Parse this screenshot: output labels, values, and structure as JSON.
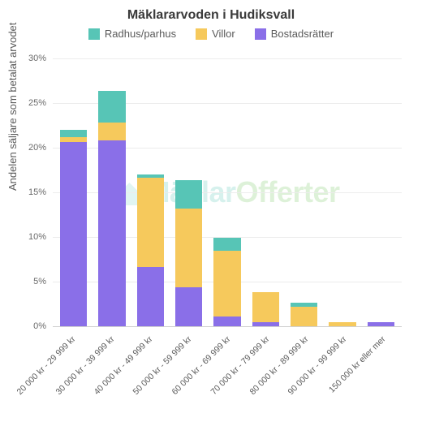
{
  "title": "Mäklararvoden i Hudiksvall",
  "title_fontsize": 16,
  "title_color": "#3a3a3a",
  "legend": {
    "items": [
      {
        "label": "Radhus/parhus",
        "color": "#57c5b6"
      },
      {
        "label": "Villor",
        "color": "#f6c95c"
      },
      {
        "label": "Bostadsrätter",
        "color": "#8a6fe8"
      }
    ],
    "fontsize": 13
  },
  "chart": {
    "type": "stacked-bar",
    "ylabel": "Andelen säljare som betalat arvodet",
    "ylabel_fontsize": 13,
    "ylim": [
      0,
      30
    ],
    "ytick_step": 5,
    "ytick_suffix": "%",
    "grid_color": "#ececec",
    "axis_color": "#d0d0d0",
    "background_color": "#ffffff",
    "tick_fontsize": 11,
    "xlabel_fontsize": 10.5,
    "xlabel_rotation_deg": 45,
    "bar_width_ratio": 0.7,
    "categories": [
      "20 000 kr - 29 999 kr",
      "30 000 kr - 39 999 kr",
      "40 000 kr - 49 999 kr",
      "50 000 kr - 59 999 kr",
      "60 000 kr - 69 999 kr",
      "70 000 kr - 79 999 kr",
      "80 000 kr - 89 999 kr",
      "90 000 kr - 99 999 kr",
      "150 000 kr eller mer"
    ],
    "series": [
      {
        "key": "bostadsratter",
        "legend_index": 2,
        "color": "#8a6fe8",
        "values": [
          20.6,
          20.8,
          6.6,
          4.4,
          1.1,
          0.5,
          0.0,
          0.0,
          0.5
        ]
      },
      {
        "key": "villor",
        "legend_index": 1,
        "color": "#f6c95c",
        "values": [
          0.6,
          2.0,
          10.0,
          8.8,
          7.4,
          3.3,
          2.2,
          0.5,
          0.0
        ]
      },
      {
        "key": "radhus",
        "legend_index": 0,
        "color": "#57c5b6",
        "values": [
          0.8,
          3.6,
          0.4,
          3.2,
          1.4,
          0.0,
          0.4,
          0.0,
          0.0
        ]
      }
    ]
  },
  "watermark": {
    "text_a": "Mäklar",
    "text_b": "Offerter",
    "color_a": "rgba(90,200,185,0.25)",
    "color_b": "rgba(120,200,100,0.25)",
    "icon_color": "rgba(90,200,185,0.18)"
  }
}
